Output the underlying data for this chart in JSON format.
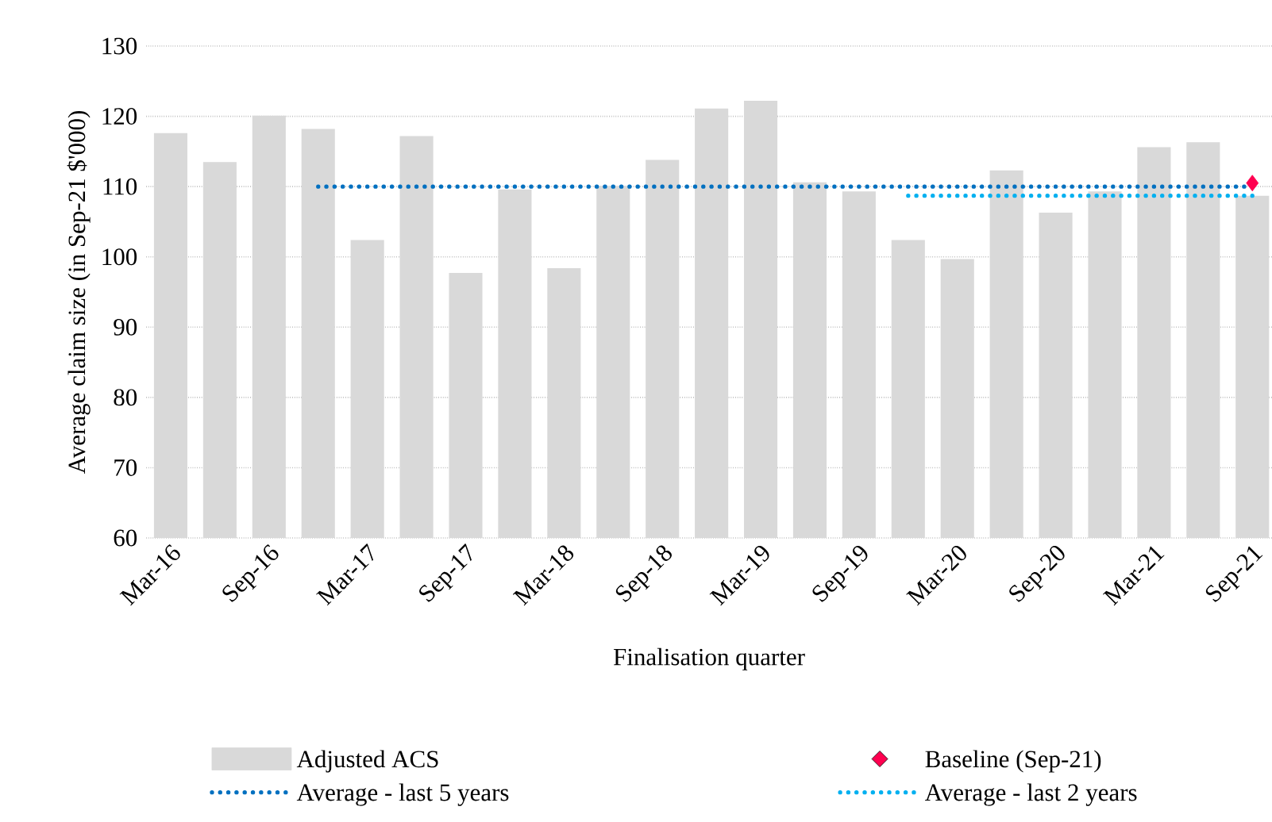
{
  "chart_data": {
    "type": "bar",
    "xlabel": "Finalisation quarter",
    "ylabel": "Average claim size (in Sep-21 $'000)",
    "categories": [
      "Mar-16",
      null,
      "Sep-16",
      null,
      "Mar-17",
      null,
      "Sep-17",
      null,
      "Mar-18",
      null,
      "Sep-18",
      null,
      "Mar-19",
      null,
      "Sep-19",
      null,
      "Mar-20",
      null,
      "Sep-20",
      null,
      "Mar-21",
      null,
      "Sep-21"
    ],
    "series": [
      {
        "name": "Adjusted ACS",
        "color": "#d9d9d9",
        "values": [
          117.6,
          113.5,
          120.1,
          118.2,
          102.4,
          117.2,
          97.7,
          109.6,
          98.4,
          110.1,
          113.8,
          121.1,
          122.2,
          110.6,
          109.3,
          102.4,
          99.7,
          112.3,
          106.3,
          109.3,
          115.6,
          116.3,
          108.7
        ]
      },
      {
        "name": "Baseline (Sep-21)",
        "type": "scatter",
        "marker": "diamond",
        "color": "#ff0050",
        "values": [
          null,
          null,
          null,
          null,
          null,
          null,
          null,
          null,
          null,
          null,
          null,
          null,
          null,
          null,
          null,
          null,
          null,
          null,
          null,
          null,
          null,
          null,
          110.5
        ]
      },
      {
        "name": "Average - last 5 years",
        "type": "line",
        "line_style": "dotted",
        "color": "#0070c0",
        "values": [
          null,
          null,
          null,
          110,
          110,
          110,
          110,
          110,
          110,
          110,
          110,
          110,
          110,
          110,
          110,
          110,
          110,
          110,
          110,
          110,
          110,
          110,
          110
        ]
      },
      {
        "name": "Average - last 2 years",
        "type": "line",
        "line_style": "dotted",
        "color": "#00b0f0",
        "values": [
          null,
          null,
          null,
          null,
          null,
          null,
          null,
          null,
          null,
          null,
          null,
          null,
          null,
          null,
          null,
          108.7,
          108.7,
          108.7,
          108.7,
          108.7,
          108.7,
          108.7,
          108.7
        ]
      }
    ],
    "ylim": [
      60,
      130
    ],
    "yticks": [
      60,
      70,
      80,
      90,
      100,
      110,
      120,
      130
    ],
    "grid": "y",
    "legend": "bottom"
  }
}
